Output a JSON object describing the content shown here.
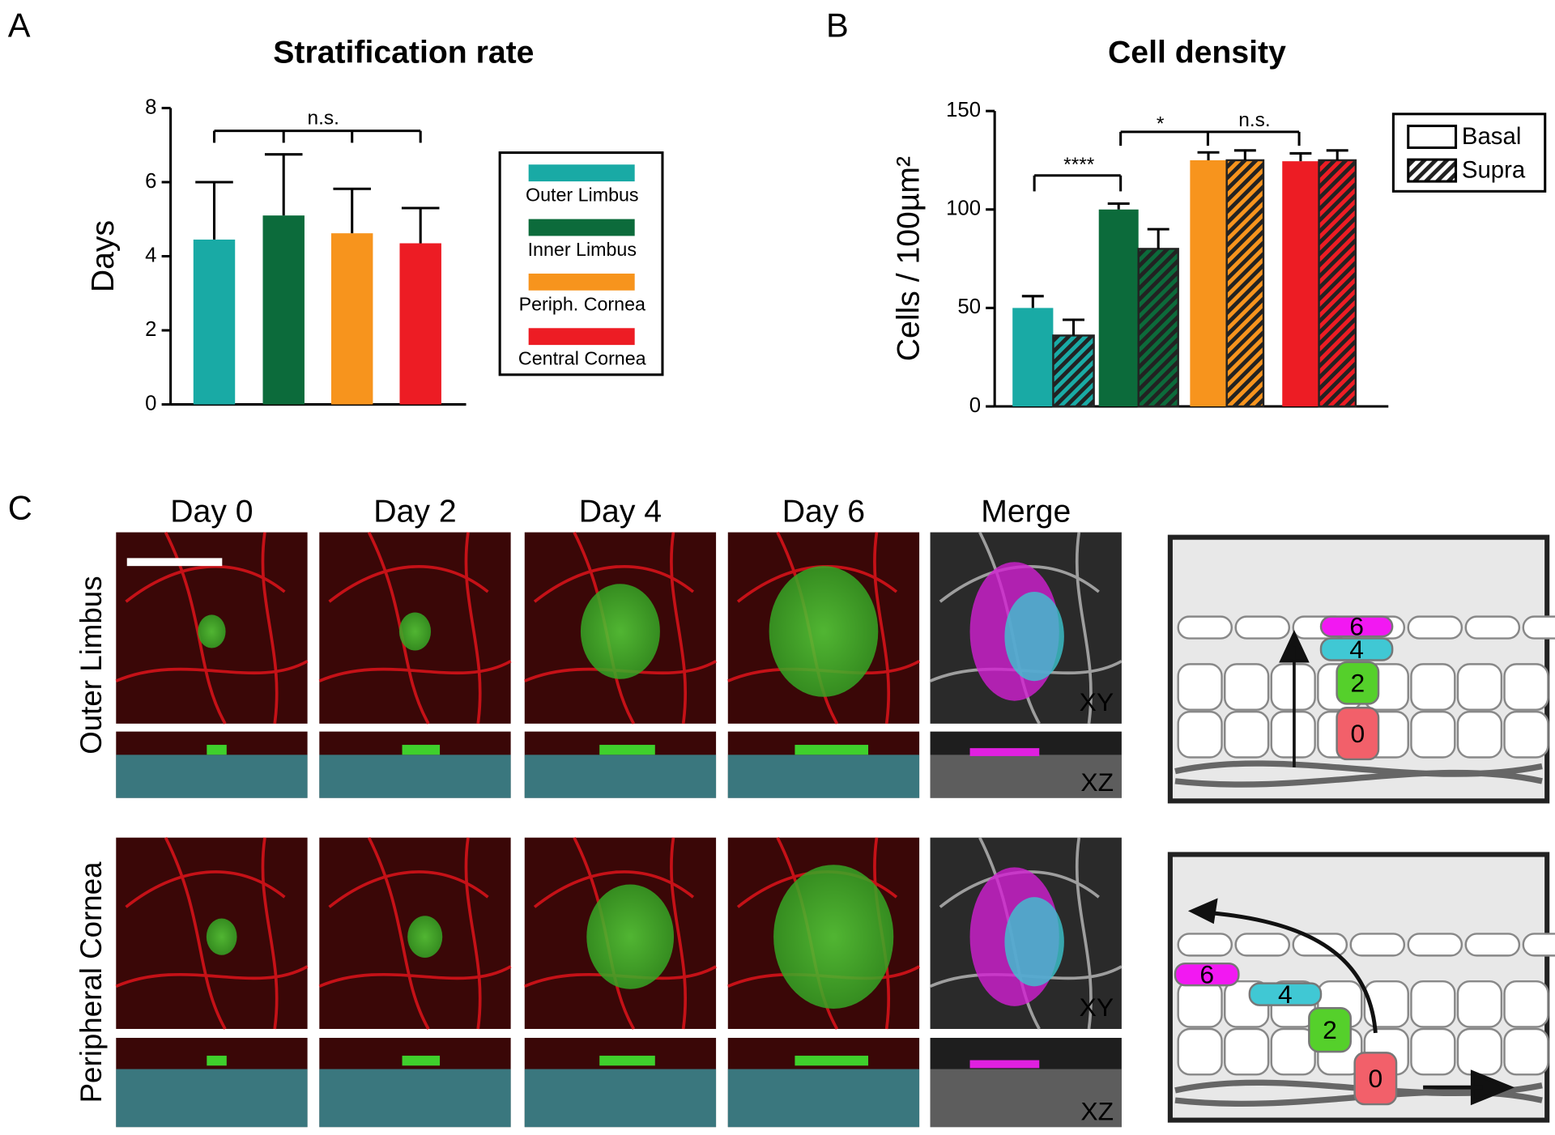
{
  "panel_labels": [
    "A",
    "B",
    "C"
  ],
  "chart_data": [
    {
      "type": "bar",
      "title": "Stratification rate",
      "ylabel": "Days",
      "categories": [
        "Outer Limbus",
        "Inner Limbus",
        "Periph. Cornea",
        "Central Cornea"
      ],
      "values": [
        4.45,
        5.1,
        4.62,
        4.35
      ],
      "errors": [
        1.55,
        1.65,
        1.2,
        0.95
      ],
      "colors": [
        "#19aaa5",
        "#0c6b3b",
        "#f7941d",
        "#ed1c24"
      ],
      "ylim": [
        0,
        8
      ],
      "yticks": [
        0,
        2,
        4,
        6,
        8
      ],
      "grid": false,
      "legend": "right",
      "annotations": [
        "n.s."
      ]
    },
    {
      "type": "grouped_bar",
      "title": "Cell density",
      "ylabel": "Cells / 100µm²",
      "colors": [
        "#19aaa5",
        "#0c6b3b",
        "#f7941d",
        "#ed1c24"
      ],
      "series": [
        {
          "name": "Basal",
          "hatch": false,
          "values": [
            50,
            100,
            125,
            124.5
          ],
          "errors": [
            6,
            3,
            4,
            4
          ]
        },
        {
          "name": "Supra",
          "hatch": true,
          "values": [
            36,
            80,
            125,
            125
          ],
          "errors": [
            8,
            10,
            5,
            5
          ]
        }
      ],
      "ylim": [
        0,
        150
      ],
      "yticks": [
        0,
        50,
        100,
        150
      ],
      "grid": false,
      "legend": "upper right",
      "annotations": [
        "****",
        "*",
        "n.s."
      ]
    }
  ],
  "panel_c": {
    "columns": [
      "Day 0",
      "Day 2",
      "Day 4",
      "Day 6",
      "Merge"
    ],
    "rows": [
      "Outer Limbus",
      "Peripheral Cornea"
    ],
    "view_labels": [
      "XY",
      "XZ"
    ],
    "stages": [
      "6",
      "4",
      "2",
      "0"
    ]
  }
}
